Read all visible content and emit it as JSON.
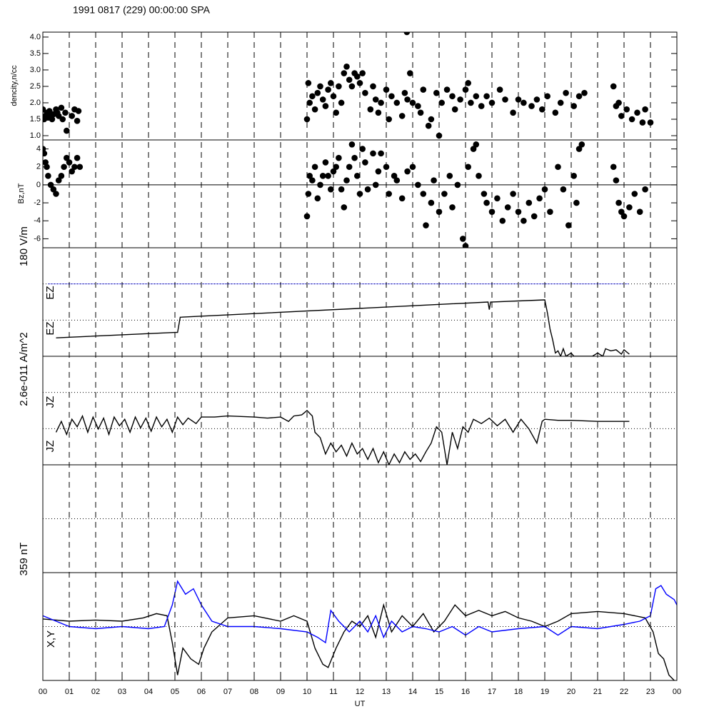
{
  "chart_data": [
    {
      "type": "scatter",
      "title": "1991 0817 (229) 00:00:00 SPA",
      "ylabel": "dencity,n/cc",
      "color": "#000000",
      "ylim": [
        0.87,
        4.15
      ],
      "yticks": [
        {
          "value": 1,
          "label": "1.0"
        },
        1.5,
        {
          "value": 2,
          "label": "2.0"
        },
        2.5,
        {
          "value": 3,
          "label": "3.0"
        },
        3.5,
        {
          "value": 4,
          "label": "4.0"
        }
      ],
      "x": [
        0.0,
        0.05,
        0.1,
        0.15,
        0.2,
        0.25,
        0.3,
        0.35,
        0.4,
        0.5,
        0.55,
        0.6,
        0.7,
        0.75,
        0.85,
        0.9,
        1.1,
        1.2,
        1.3,
        1.35,
        10.0,
        10.05,
        10.1,
        10.2,
        10.3,
        10.4,
        10.5,
        10.6,
        10.7,
        10.8,
        10.9,
        11.0,
        11.1,
        11.2,
        11.3,
        11.4,
        11.5,
        11.6,
        11.7,
        11.8,
        11.9,
        12.0,
        12.1,
        12.2,
        12.4,
        12.5,
        12.6,
        12.7,
        12.8,
        13.0,
        13.1,
        13.2,
        13.4,
        13.6,
        13.7,
        13.8,
        13.9,
        14.0,
        14.2,
        14.3,
        14.4,
        14.6,
        14.7,
        14.9,
        15.1,
        15.3,
        15.5,
        15.6,
        15.8,
        16.0,
        16.1,
        16.2,
        16.4,
        16.6,
        16.8,
        17.0,
        17.3,
        17.5,
        17.8,
        18.0,
        18.2,
        18.5,
        18.7,
        18.9,
        19.1,
        19.4,
        19.6,
        19.8,
        20.1,
        20.3,
        20.5,
        21.6,
        21.7,
        21.8,
        21.9,
        22.1,
        22.3,
        22.5,
        22.7,
        22.8,
        23.0,
        13.78,
        15.0
      ],
      "values": [
        1.8,
        1.5,
        1.6,
        1.7,
        1.55,
        1.75,
        1.6,
        1.5,
        1.65,
        1.8,
        1.7,
        1.6,
        1.85,
        1.5,
        1.7,
        1.15,
        1.6,
        1.8,
        1.45,
        1.75,
        1.5,
        2.6,
        2.0,
        2.2,
        1.8,
        2.3,
        2.5,
        2.1,
        1.9,
        2.4,
        2.6,
        2.2,
        1.7,
        2.5,
        2.0,
        2.9,
        3.1,
        2.7,
        2.5,
        2.9,
        2.8,
        2.6,
        2.9,
        2.3,
        1.8,
        2.5,
        2.1,
        1.7,
        2.0,
        2.4,
        1.5,
        2.2,
        2.0,
        1.6,
        2.3,
        2.1,
        2.9,
        2.0,
        1.9,
        1.7,
        2.4,
        1.3,
        1.5,
        2.3,
        2.0,
        2.4,
        2.2,
        1.8,
        2.1,
        2.4,
        2.6,
        2.0,
        2.2,
        1.9,
        2.2,
        2.0,
        2.4,
        2.1,
        1.7,
        2.1,
        2.0,
        1.9,
        2.1,
        1.8,
        2.2,
        1.7,
        2.0,
        2.3,
        1.9,
        2.2,
        2.3,
        2.5,
        1.9,
        2.0,
        1.6,
        1.8,
        1.5,
        1.7,
        1.4,
        1.8,
        1.4,
        4.15,
        1.0
      ]
    },
    {
      "type": "scatter",
      "ylabel": "Bz,nT",
      "color": "#000000",
      "ylim": [
        -7,
        5
      ],
      "yticks": [
        -6,
        -4,
        -2,
        0,
        2,
        4
      ],
      "reference_lines": [
        0
      ],
      "reference_style": "solid",
      "x": [
        0.0,
        0.05,
        0.1,
        0.15,
        0.2,
        0.3,
        0.4,
        0.5,
        0.6,
        0.7,
        0.8,
        0.9,
        1.0,
        1.1,
        1.2,
        1.3,
        1.4,
        10.0,
        10.05,
        10.1,
        10.2,
        10.3,
        10.4,
        10.5,
        10.6,
        10.7,
        10.8,
        10.9,
        11.0,
        11.1,
        11.2,
        11.3,
        11.4,
        11.5,
        11.6,
        11.7,
        11.8,
        11.9,
        12.0,
        12.1,
        12.2,
        12.3,
        12.5,
        12.6,
        12.7,
        12.8,
        13.0,
        13.1,
        13.3,
        13.4,
        13.6,
        13.8,
        14.0,
        14.2,
        14.4,
        14.5,
        14.7,
        14.8,
        15.0,
        15.2,
        15.4,
        15.5,
        15.7,
        15.9,
        16.0,
        16.1,
        16.3,
        16.4,
        16.5,
        16.7,
        16.8,
        17.0,
        17.2,
        17.4,
        17.6,
        17.8,
        18.0,
        18.2,
        18.4,
        18.6,
        18.8,
        19.0,
        19.2,
        19.5,
        19.7,
        19.9,
        20.1,
        20.2,
        20.3,
        20.4,
        21.6,
        21.7,
        21.8,
        21.9,
        22.0,
        22.2,
        22.4,
        22.6,
        22.8
      ],
      "values": [
        4,
        3.5,
        2.5,
        2,
        1,
        0,
        -0.5,
        -1,
        0.5,
        1,
        2,
        3,
        2.5,
        1.5,
        2,
        3,
        2,
        -3.5,
        -1,
        1,
        0.5,
        2,
        -1.5,
        0,
        1,
        2.5,
        1,
        -0.5,
        1.5,
        2,
        3,
        -0.5,
        -2.5,
        0.5,
        2,
        4.5,
        3,
        1,
        -1,
        4,
        2.5,
        -0.5,
        3.5,
        0,
        1.5,
        3.5,
        2,
        -1,
        1,
        0.5,
        -1.5,
        1.5,
        2,
        0,
        -1,
        -4.5,
        -2,
        0.5,
        -3,
        -1,
        1,
        -2.5,
        0,
        -6,
        -6.8,
        2,
        4,
        4.5,
        1,
        -1,
        -2,
        -3,
        -1.5,
        -4,
        -2.5,
        -1,
        -3,
        -4,
        -2,
        -3.5,
        -1.5,
        -0.5,
        -3,
        2,
        -0.5,
        -4.5,
        1,
        -2,
        4,
        4.5,
        2,
        0.5,
        -2,
        -3,
        -3.5,
        -2.5,
        -1,
        -3,
        -0.5
      ]
    },
    {
      "type": "line",
      "ylabel": "180 V/m",
      "annotations": [
        "EZ",
        "EZ"
      ],
      "ylim": [
        0,
        1
      ],
      "reference_lines": [
        0.333,
        0.667
      ],
      "reference_style": "dotted",
      "series": [
        {
          "color": "#0000ff",
          "x": [
            0.2,
            22.2
          ],
          "values": [
            0.667,
            0.667
          ]
        },
        {
          "color": "#000000",
          "x": [
            0.5,
            5.0,
            5.1,
            5.2,
            16.85,
            16.9,
            16.95,
            19.0,
            19.1,
            19.2,
            19.3,
            19.4,
            19.5,
            19.6,
            19.7,
            19.8,
            20.0,
            20.1,
            20.8,
            21.0,
            21.2,
            21.3,
            21.5,
            21.7,
            21.9,
            22.0,
            22.2
          ],
          "values": [
            0.17,
            0.22,
            0.22,
            0.36,
            0.5,
            0.43,
            0.5,
            0.52,
            0.4,
            0.25,
            0.15,
            0.03,
            0.05,
            0.0,
            0.07,
            0.0,
            0.03,
            0.0,
            0.0,
            0.03,
            0.0,
            0.07,
            0.05,
            0.06,
            0.02,
            0.06,
            0.02
          ]
        }
      ]
    },
    {
      "type": "line",
      "ylabel": "2.6e-011 A/m^2",
      "annotations": [
        "JZ",
        "JZ"
      ],
      "ylim": [
        0,
        1
      ],
      "reference_lines": [
        0.333,
        0.667
      ],
      "reference_style": "dotted",
      "series": [
        {
          "color": "#000000",
          "x": [
            0.5,
            0.7,
            0.9,
            1.1,
            1.3,
            1.5,
            1.7,
            1.9,
            2.1,
            2.3,
            2.5,
            2.7,
            2.9,
            3.1,
            3.3,
            3.5,
            3.7,
            3.9,
            4.1,
            4.3,
            4.5,
            4.7,
            4.9,
            5.1,
            5.3,
            5.5,
            5.8,
            6.0,
            6.5,
            7.0,
            8.0,
            8.5,
            9.0,
            9.3,
            9.5,
            9.8,
            10.0,
            10.2,
            10.3,
            10.5,
            10.7,
            10.9,
            11.1,
            11.3,
            11.5,
            11.7,
            11.9,
            12.1,
            12.3,
            12.5,
            12.7,
            12.9,
            13.1,
            13.3,
            13.5,
            13.7,
            13.9,
            14.1,
            14.3,
            14.5,
            14.7,
            14.9,
            15.1,
            15.3,
            15.5,
            15.7,
            15.9,
            16.1,
            16.3,
            16.6,
            16.9,
            17.2,
            17.5,
            17.8,
            18.1,
            18.4,
            18.7,
            18.9,
            19.0,
            19.5,
            20,
            21,
            22.2
          ],
          "values": [
            0.3,
            0.4,
            0.28,
            0.42,
            0.35,
            0.45,
            0.3,
            0.44,
            0.33,
            0.43,
            0.28,
            0.44,
            0.36,
            0.42,
            0.3,
            0.44,
            0.34,
            0.43,
            0.31,
            0.44,
            0.35,
            0.42,
            0.3,
            0.44,
            0.37,
            0.43,
            0.38,
            0.44,
            0.44,
            0.45,
            0.44,
            0.43,
            0.44,
            0.4,
            0.45,
            0.46,
            0.5,
            0.45,
            0.3,
            0.25,
            0.1,
            0.2,
            0.12,
            0.18,
            0.08,
            0.2,
            0.1,
            0.15,
            0.05,
            0.15,
            0.02,
            0.12,
            0.0,
            0.1,
            0.02,
            0.12,
            0.05,
            0.1,
            0.03,
            0.12,
            0.2,
            0.35,
            0.3,
            0.0,
            0.3,
            0.15,
            0.35,
            0.3,
            0.42,
            0.38,
            0.43,
            0.36,
            0.42,
            0.3,
            0.42,
            0.33,
            0.2,
            0.4,
            0.42,
            0.41,
            0.41,
            0.4,
            0.4
          ]
        }
      ]
    },
    {
      "type": "line",
      "ylabel": "359 nT",
      "ylim": [
        0,
        1
      ],
      "reference_lines": [
        0.5
      ],
      "reference_style": "dotted",
      "series": []
    },
    {
      "type": "line",
      "annotations": [
        "X,Y"
      ],
      "ylim": [
        0,
        1
      ],
      "reference_lines": [
        0.5
      ],
      "reference_style": "dotted",
      "xlim": [
        0,
        24
      ],
      "xlabel": "UT",
      "xticks": [
        {
          "value": 0,
          "label": "00"
        },
        {
          "value": 1,
          "label": "01"
        },
        {
          "value": 2,
          "label": "02"
        },
        {
          "value": 3,
          "label": "03"
        },
        {
          "value": 4,
          "label": "04"
        },
        {
          "value": 5,
          "label": "05"
        },
        {
          "value": 6,
          "label": "06"
        },
        {
          "value": 7,
          "label": "07"
        },
        {
          "value": 8,
          "label": "08"
        },
        {
          "value": 9,
          "label": "09"
        },
        10,
        11,
        12,
        13,
        14,
        15,
        16,
        17,
        18,
        19,
        20,
        21,
        22,
        23,
        {
          "value": 24,
          "label": "00"
        }
      ],
      "grid": true,
      "series": [
        {
          "color": "#000000",
          "x": [
            0,
            0.5,
            1,
            2,
            3,
            3.8,
            4.3,
            4.7,
            4.9,
            5.1,
            5.3,
            5.6,
            5.9,
            6.1,
            6.4,
            7,
            8,
            9,
            9.5,
            10,
            10.3,
            10.6,
            10.8,
            11.1,
            11.4,
            11.7,
            12,
            12.3,
            12.6,
            12.9,
            13.2,
            13.6,
            14.0,
            14.4,
            14.8,
            15.2,
            15.6,
            16,
            16.5,
            17,
            17.5,
            18,
            18.5,
            19,
            19.5,
            20,
            21,
            22,
            22.8,
            23.1,
            23.3,
            23.5,
            23.7,
            23.9
          ],
          "values": [
            0.57,
            0.56,
            0.55,
            0.56,
            0.55,
            0.58,
            0.62,
            0.6,
            0.35,
            0.05,
            0.3,
            0.2,
            0.15,
            0.3,
            0.45,
            0.58,
            0.6,
            0.55,
            0.6,
            0.55,
            0.3,
            0.15,
            0.12,
            0.3,
            0.45,
            0.55,
            0.5,
            0.6,
            0.4,
            0.7,
            0.45,
            0.6,
            0.5,
            0.62,
            0.45,
            0.55,
            0.7,
            0.6,
            0.65,
            0.6,
            0.64,
            0.58,
            0.55,
            0.5,
            0.55,
            0.62,
            0.64,
            0.62,
            0.58,
            0.45,
            0.25,
            0.2,
            0.05,
            0.0
          ]
        },
        {
          "color": "#0000ff",
          "x": [
            0,
            0.5,
            1,
            2,
            3,
            4,
            4.6,
            4.9,
            5.1,
            5.4,
            5.7,
            6,
            6.4,
            7,
            8,
            9,
            10,
            10.4,
            10.7,
            10.9,
            11.2,
            11.6,
            12,
            12.3,
            12.6,
            12.9,
            13.2,
            13.6,
            14,
            14.5,
            15,
            15.5,
            16,
            16.5,
            17,
            18,
            19,
            19.5,
            20,
            21,
            22,
            22.6,
            23,
            23.2,
            23.4,
            23.6,
            23.9,
            24
          ],
          "values": [
            0.6,
            0.55,
            0.5,
            0.48,
            0.5,
            0.48,
            0.5,
            0.7,
            0.92,
            0.8,
            0.85,
            0.7,
            0.55,
            0.5,
            0.5,
            0.48,
            0.45,
            0.4,
            0.35,
            0.65,
            0.55,
            0.45,
            0.55,
            0.45,
            0.6,
            0.4,
            0.55,
            0.45,
            0.5,
            0.48,
            0.45,
            0.5,
            0.42,
            0.5,
            0.45,
            0.48,
            0.5,
            0.42,
            0.5,
            0.48,
            0.52,
            0.55,
            0.6,
            0.85,
            0.88,
            0.8,
            0.75,
            0.7
          ]
        }
      ]
    }
  ]
}
